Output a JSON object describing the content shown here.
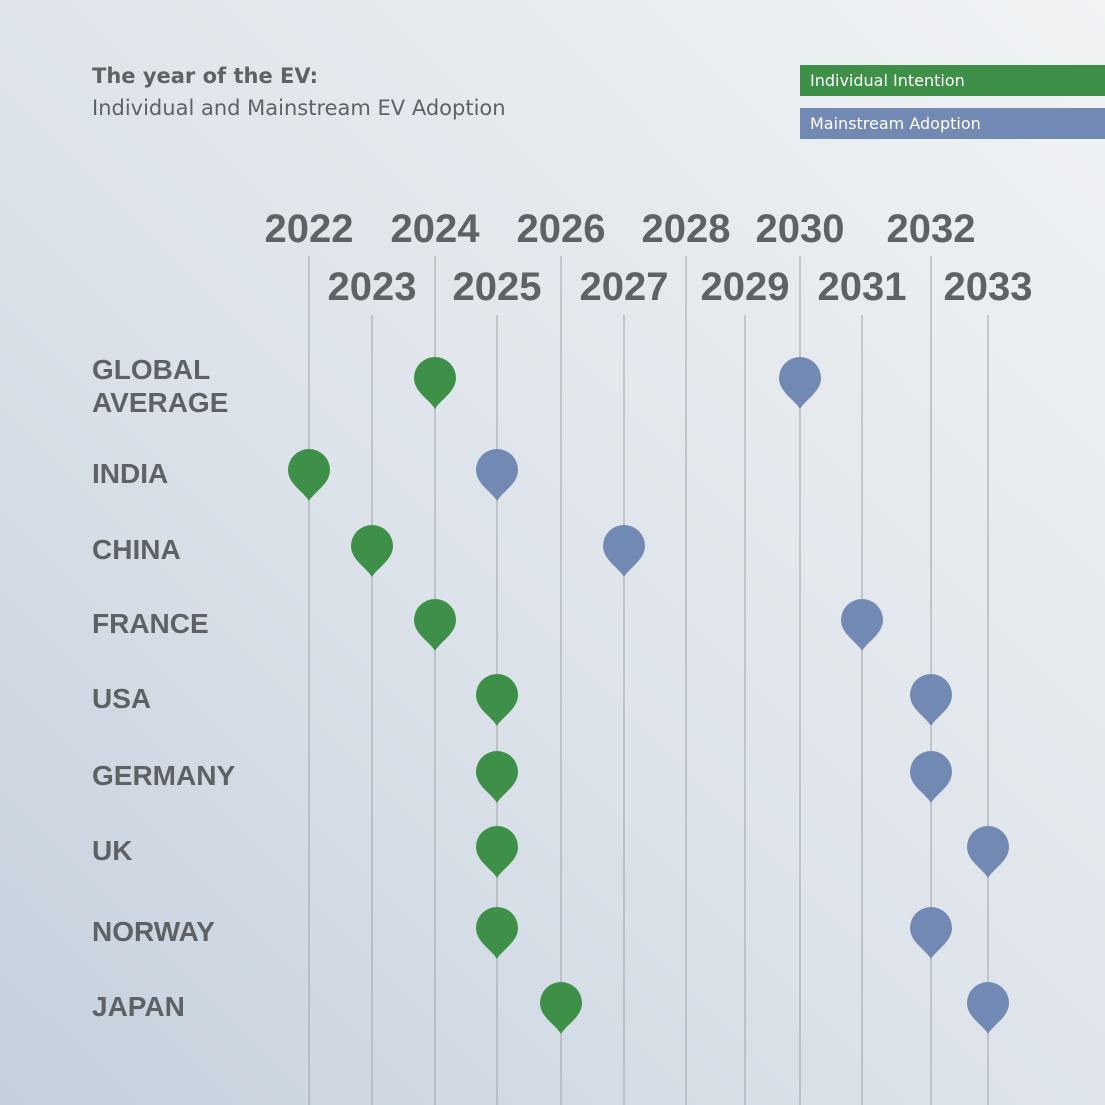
{
  "title": "The year of the EV:",
  "subtitle": "Individual and Mainstream EV Adoption",
  "legend": [
    {
      "label": "Individual Intention",
      "color": "#3e9048"
    },
    {
      "label": "Mainstream Adoption",
      "color": "#7289b4"
    }
  ],
  "chart_data": {
    "type": "scatter",
    "title": "The year of the EV:",
    "subtitle": "Individual and Mainstream EV Adoption",
    "x": [
      2022,
      2023,
      2024,
      2025,
      2026,
      2027,
      2028,
      2029,
      2030,
      2031,
      2032,
      2033
    ],
    "categories": [
      "GLOBAL AVERAGE",
      "INDIA",
      "CHINA",
      "FRANCE",
      "USA",
      "GERMANY",
      "UK",
      "NORWAY",
      "JAPAN"
    ],
    "series": [
      {
        "name": "Individual Intention",
        "color": "#3e9048",
        "values": [
          2024,
          2022,
          2023,
          2024,
          2025,
          2025,
          2025,
          2025,
          2026
        ]
      },
      {
        "name": "Mainstream Adoption",
        "color": "#7289b4",
        "values": [
          2030,
          2025,
          2027,
          2031,
          2032,
          2032,
          2033,
          2032,
          2033
        ]
      }
    ],
    "legend_position": "top-right",
    "grid": true
  }
}
